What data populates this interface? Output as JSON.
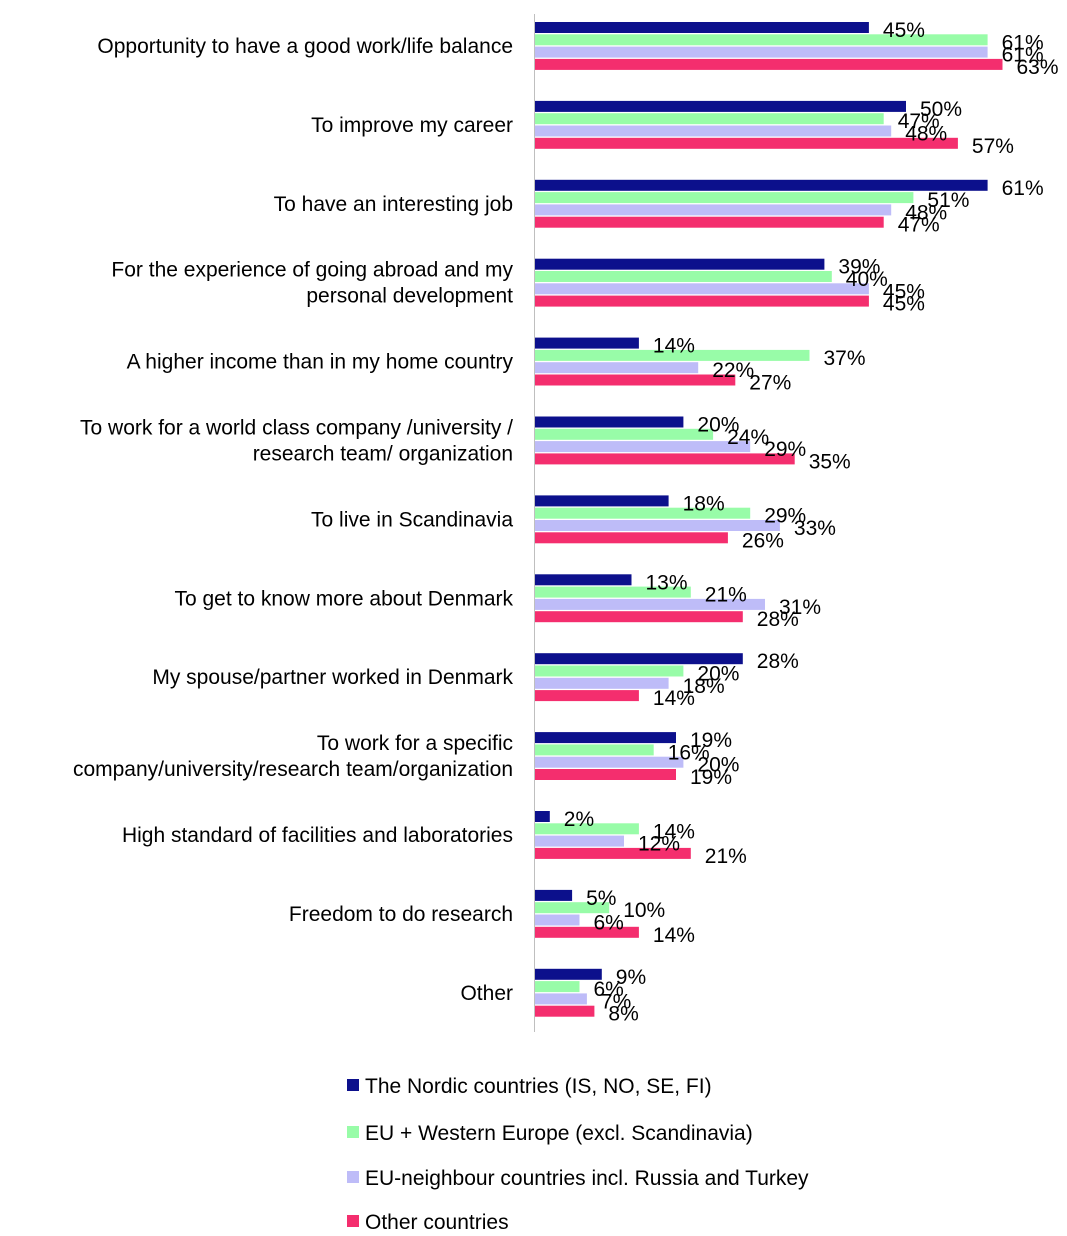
{
  "chart_data": {
    "type": "bar",
    "orientation": "horizontal",
    "categories": [
      "Opportunity to have a good work/life balance",
      "To improve my career",
      "To have an interesting job",
      "For the experience of going abroad and my personal development",
      "A higher income than in my home country",
      "To work for a world class company /university / research team/ organization",
      "To live in Scandinavia",
      "To get to know more about Denmark",
      "My spouse/partner worked in Denmark",
      "To work for a specific company/university/research team/organization",
      "High standard of facilities and laboratories",
      "Freedom to do research",
      "Other"
    ],
    "category_lines": [
      [
        "Opportunity to have a good work/life balance"
      ],
      [
        "To improve my career"
      ],
      [
        "To have an interesting job"
      ],
      [
        "For the experience of going abroad and my",
        "personal development"
      ],
      [
        "A higher income than in my home country"
      ],
      [
        "To work for a world class company /university /",
        "research team/ organization"
      ],
      [
        "To live in Scandinavia"
      ],
      [
        "To get to know more about Denmark"
      ],
      [
        "My spouse/partner worked in Denmark"
      ],
      [
        "To work for a specific",
        "company/university/research team/organization"
      ],
      [
        "High standard of facilities and laboratories"
      ],
      [
        "Freedom to do research"
      ],
      [
        "Other"
      ]
    ],
    "series": [
      {
        "name": "The Nordic countries (IS, NO, SE, FI)",
        "color": "#0c108c",
        "values": [
          45,
          50,
          61,
          39,
          14,
          20,
          18,
          13,
          28,
          19,
          2,
          5,
          9
        ]
      },
      {
        "name": "EU + Western Europe (excl. Scandinavia)",
        "color": "#98fca8",
        "values": [
          61,
          47,
          51,
          40,
          37,
          24,
          29,
          21,
          20,
          16,
          14,
          10,
          6
        ]
      },
      {
        "name": "EU-neighbour countries incl. Russia and Turkey",
        "color": "#bebcf8",
        "values": [
          61,
          48,
          48,
          45,
          22,
          29,
          33,
          31,
          18,
          20,
          12,
          6,
          7
        ]
      },
      {
        "name": "Other countries",
        "color": "#f42e6e",
        "values": [
          63,
          57,
          47,
          45,
          27,
          35,
          26,
          28,
          14,
          19,
          21,
          14,
          8
        ]
      }
    ],
    "value_suffix": "%",
    "xlim": [
      0,
      70
    ],
    "grid": false,
    "legend_position": "bottom"
  }
}
